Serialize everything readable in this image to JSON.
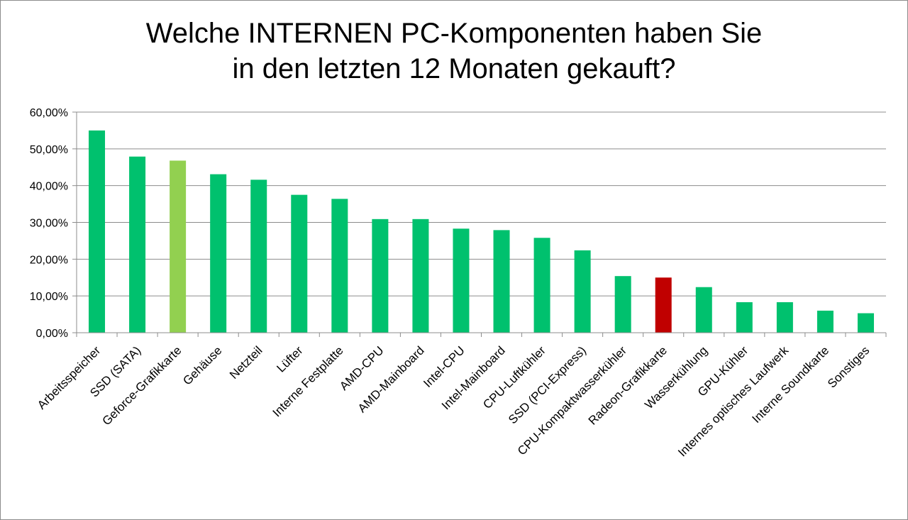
{
  "chart_data": {
    "type": "bar",
    "title": [
      "Welche INTERNEN PC-Komponenten haben Sie",
      "in den letzten 12 Monaten gekauft?"
    ],
    "xlabel": "",
    "ylabel": "",
    "ylim": [
      0,
      60
    ],
    "yticks": [
      "0,00%",
      "10,00%",
      "20,00%",
      "30,00%",
      "40,00%",
      "50,00%",
      "60,00%"
    ],
    "grid": true,
    "legend": "none",
    "categories": [
      "Arbeitsspeicher",
      "SSD (SATA)",
      "Geforce-Grafikkarte",
      "Gehäuse",
      "Netzteil",
      "Lüfter",
      "Interne Festplatte",
      "AMD-CPU",
      "AMD-Mainboard",
      "Intel-CPU",
      "Intel-Mainboard",
      "CPU-Luftkühler",
      "SSD (PCI-Express)",
      "CPU-Kompaktwasserkühler",
      "Radeon-Grafikkarte",
      "Wasserkühlung",
      "GPU-Kühler",
      "Internes optisches Laufwerk",
      "Interne Soundkarte",
      "Sonstiges"
    ],
    "values": [
      55.0,
      47.9,
      46.8,
      43.1,
      41.6,
      37.5,
      36.4,
      30.9,
      30.9,
      28.3,
      27.9,
      25.8,
      22.4,
      15.4,
      15.0,
      12.4,
      8.3,
      8.3,
      6.0,
      5.3
    ],
    "colors": [
      "#00c16e",
      "#00c16e",
      "#92d050",
      "#00c16e",
      "#00c16e",
      "#00c16e",
      "#00c16e",
      "#00c16e",
      "#00c16e",
      "#00c16e",
      "#00c16e",
      "#00c16e",
      "#00c16e",
      "#00c16e",
      "#c00000",
      "#00c16e",
      "#00c16e",
      "#00c16e",
      "#00c16e",
      "#00c16e"
    ]
  }
}
